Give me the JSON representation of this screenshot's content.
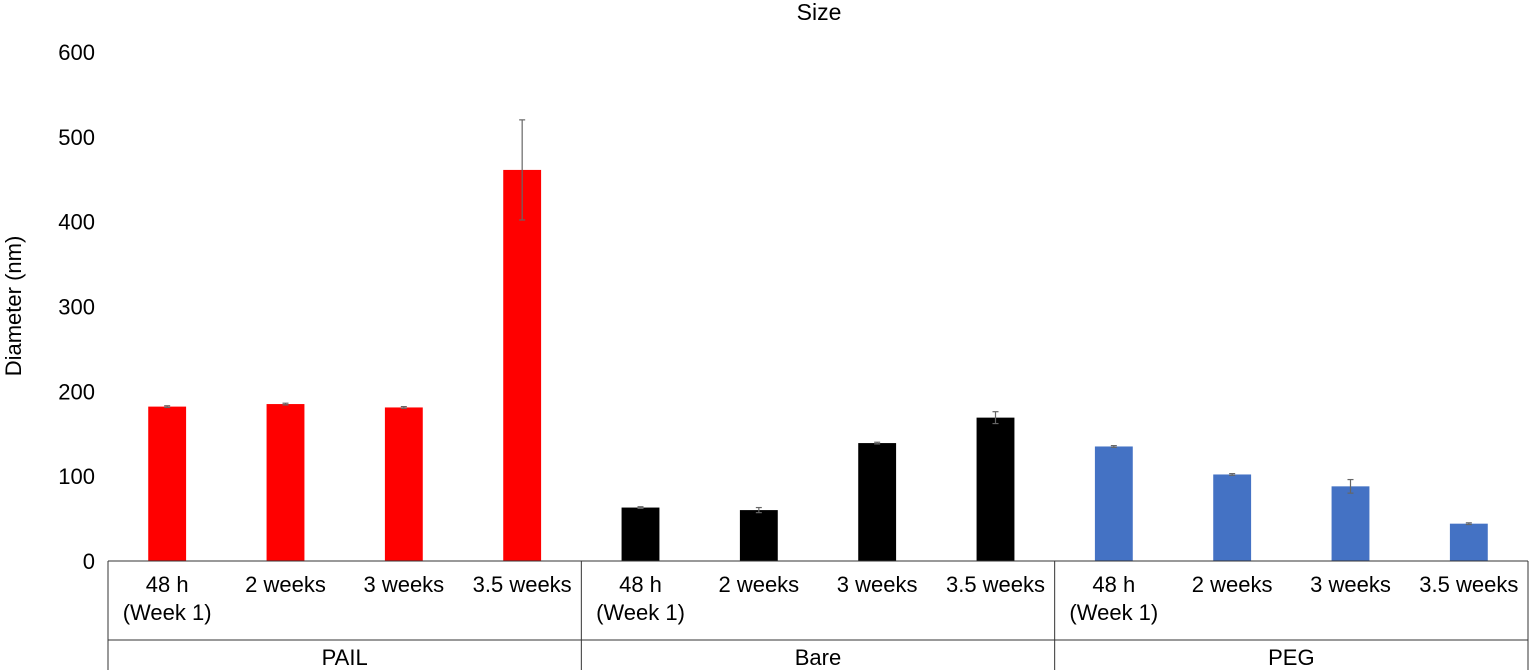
{
  "chart_data": {
    "type": "bar",
    "title": "Size",
    "ylabel": "Diameter (nm)",
    "xlabel": "",
    "ylim": [
      0,
      600
    ],
    "yticks": [
      0,
      100,
      200,
      300,
      400,
      500,
      600
    ],
    "grid": false,
    "legend": "none",
    "groups": [
      {
        "name": "PAIL",
        "color": "#ff0000",
        "bars": [
          {
            "label": [
              "48 h",
              "(Week 1)"
            ],
            "value": 182,
            "error": 1
          },
          {
            "label": [
              "2 weeks"
            ],
            "value": 185,
            "error": 1
          },
          {
            "label": [
              "3 weeks"
            ],
            "value": 181,
            "error": 1
          },
          {
            "label": [
              "3.5 weeks"
            ],
            "value": 461,
            "error": 59
          }
        ]
      },
      {
        "name": "Bare",
        "color": "#000000",
        "bars": [
          {
            "label": [
              "48 h",
              "(Week 1)"
            ],
            "value": 63,
            "error": 1
          },
          {
            "label": [
              "2 weeks"
            ],
            "value": 60,
            "error": 3
          },
          {
            "label": [
              "3 weeks"
            ],
            "value": 139,
            "error": 1
          },
          {
            "label": [
              "3.5 weeks"
            ],
            "value": 169,
            "error": 7
          }
        ]
      },
      {
        "name": "PEG",
        "color": "#4472c4",
        "bars": [
          {
            "label": [
              "48 h",
              "(Week 1)"
            ],
            "value": 135,
            "error": 1
          },
          {
            "label": [
              "2 weeks"
            ],
            "value": 102,
            "error": 1
          },
          {
            "label": [
              "3 weeks"
            ],
            "value": 88,
            "error": 8
          },
          {
            "label": [
              "3.5 weeks"
            ],
            "value": 44,
            "error": 1
          }
        ]
      }
    ]
  }
}
